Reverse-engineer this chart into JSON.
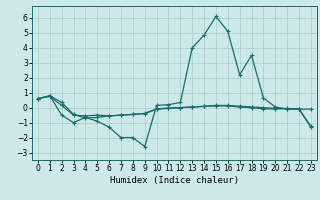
{
  "xlabel": "Humidex (Indice chaleur)",
  "background_color": "#cce8e8",
  "grid_color": "#aacccc",
  "line_color": "#1a6b6b",
  "xlim": [
    -0.5,
    23.5
  ],
  "ylim": [
    -3.5,
    6.8
  ],
  "yticks": [
    -3,
    -2,
    -1,
    0,
    1,
    2,
    3,
    4,
    5,
    6
  ],
  "xticks": [
    0,
    1,
    2,
    3,
    4,
    5,
    6,
    7,
    8,
    9,
    10,
    11,
    12,
    13,
    14,
    15,
    16,
    17,
    18,
    19,
    20,
    21,
    22,
    23
  ],
  "series1_x": [
    0,
    1,
    2,
    3,
    4,
    5,
    6,
    7,
    8,
    9,
    10,
    11,
    12,
    13,
    14,
    15,
    16,
    17,
    18,
    19,
    20,
    21,
    22,
    23
  ],
  "series1_y": [
    0.6,
    0.8,
    0.35,
    -0.45,
    -0.7,
    -0.65,
    -0.55,
    -0.5,
    -0.45,
    -0.4,
    -0.1,
    -0.05,
    -0.0,
    0.05,
    0.1,
    0.15,
    0.15,
    0.1,
    0.05,
    0.0,
    -0.05,
    -0.05,
    -0.1,
    -0.1
  ],
  "series2_x": [
    0,
    1,
    2,
    3,
    4,
    5,
    6,
    7,
    8,
    9,
    10,
    11,
    12,
    13,
    14,
    15,
    16,
    17,
    18,
    19,
    20,
    21,
    22,
    23
  ],
  "series2_y": [
    0.6,
    0.8,
    -0.5,
    -1.0,
    -0.65,
    -0.9,
    -1.3,
    -2.0,
    -2.0,
    -2.6,
    0.15,
    0.2,
    0.35,
    4.0,
    4.85,
    6.1,
    5.1,
    2.2,
    3.5,
    0.65,
    0.05,
    -0.1,
    -0.1,
    -1.3
  ],
  "series3_x": [
    0,
    1,
    2,
    3,
    4,
    5,
    6,
    7,
    8,
    9,
    10,
    11,
    12,
    13,
    14,
    15,
    16,
    17,
    18,
    19,
    20,
    21,
    22,
    23
  ],
  "series3_y": [
    0.6,
    0.75,
    0.15,
    -0.5,
    -0.55,
    -0.5,
    -0.55,
    -0.5,
    -0.45,
    -0.38,
    -0.08,
    -0.02,
    0.0,
    0.04,
    0.08,
    0.12,
    0.12,
    0.04,
    0.0,
    -0.08,
    -0.08,
    -0.08,
    -0.08,
    -1.25
  ]
}
